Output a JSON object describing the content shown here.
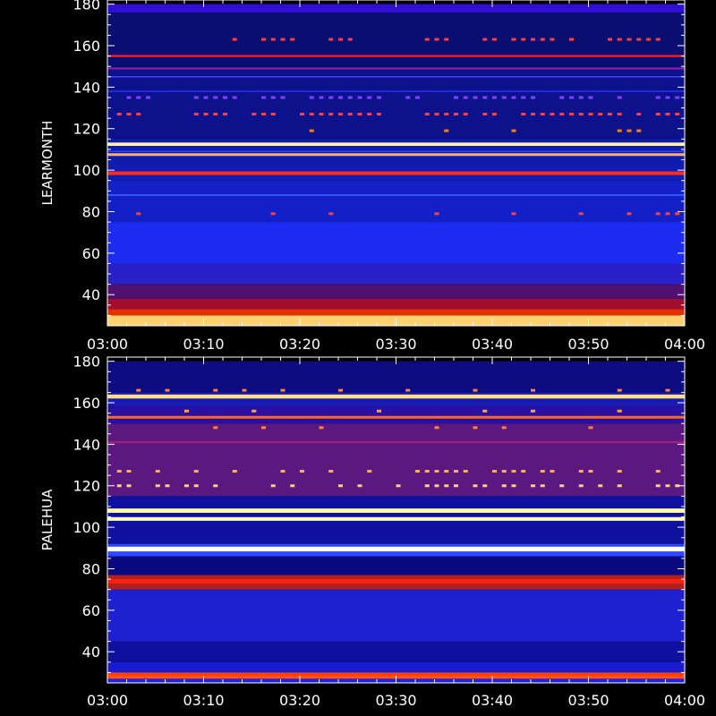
{
  "chart_data": [
    {
      "type": "heatmap",
      "ylabel": "LEARMONTH",
      "x_ticks": [
        "03:00",
        "03:10",
        "03:20",
        "03:30",
        "03:40",
        "03:50",
        "04:00"
      ],
      "x_range": [
        "03:00",
        "04:00"
      ],
      "y_ticks": [
        40,
        60,
        80,
        100,
        120,
        140,
        160,
        180
      ],
      "ylim": [
        25,
        180
      ],
      "background_bands": [
        {
          "from": 25,
          "to": 30,
          "color": "#ffd070"
        },
        {
          "from": 30,
          "to": 33,
          "color": "#e03000"
        },
        {
          "from": 33,
          "to": 38,
          "color": "#a00f30"
        },
        {
          "from": 38,
          "to": 45,
          "color": "#501070"
        },
        {
          "from": 45,
          "to": 55,
          "color": "#2a20c8"
        },
        {
          "from": 55,
          "to": 75,
          "color": "#1d2cf0"
        },
        {
          "from": 75,
          "to": 95,
          "color": "#1320c8"
        },
        {
          "from": 95,
          "to": 115,
          "color": "#101cb0"
        },
        {
          "from": 115,
          "to": 150,
          "color": "#0c128c"
        },
        {
          "from": 150,
          "to": 176,
          "color": "#0a0e70"
        },
        {
          "from": 176,
          "to": 180,
          "color": "#3010d8"
        }
      ],
      "lines": [
        {
          "freq": 107.5,
          "width": 0.8,
          "color": "#ffb070"
        },
        {
          "freq": 109,
          "width": 0.4,
          "color": "#3040ff"
        },
        {
          "freq": 112.5,
          "width": 1.0,
          "color": "#fff4a0"
        },
        {
          "freq": 98.5,
          "width": 1.1,
          "color": "#ff2a1a"
        },
        {
          "freq": 88,
          "width": 0.4,
          "color": "#3a6cff"
        },
        {
          "freq": 155,
          "width": 0.6,
          "color": "#ff2020"
        },
        {
          "freq": 149,
          "width": 0.5,
          "color": "#a020a0"
        },
        {
          "freq": 145,
          "width": 0.4,
          "color": "#4a40ff"
        },
        {
          "freq": 138,
          "width": 0.4,
          "color": "#3030ff"
        }
      ],
      "blips": [
        {
          "freq": 163,
          "times": [
            13,
            16,
            17,
            18,
            19,
            23,
            24,
            25,
            33,
            34,
            35,
            39,
            40,
            42,
            43,
            44,
            45,
            46,
            48,
            52,
            53,
            54,
            55,
            56,
            57
          ],
          "color": "#ff4040"
        },
        {
          "freq": 135,
          "times": [
            2,
            3,
            4,
            9,
            10,
            11,
            12,
            13,
            16,
            17,
            18,
            21,
            22,
            23,
            24,
            25,
            26,
            27,
            28,
            31,
            32,
            36,
            37,
            38,
            39,
            40,
            41,
            42,
            43,
            44,
            47,
            48,
            49,
            50,
            53,
            57,
            58,
            59
          ],
          "color": "#8040ff"
        },
        {
          "freq": 127,
          "times": [
            1,
            2,
            3,
            9,
            10,
            11,
            12,
            15,
            16,
            17,
            20,
            21,
            22,
            23,
            24,
            25,
            26,
            27,
            28,
            33,
            34,
            35,
            36,
            37,
            39,
            40,
            43,
            44,
            45,
            46,
            47,
            48,
            49,
            50,
            51,
            52,
            53,
            55,
            57,
            58,
            59
          ],
          "color": "#ff4040"
        },
        {
          "freq": 79,
          "times": [
            3,
            17,
            23,
            34,
            42,
            49,
            54,
            57,
            58,
            59
          ],
          "color": "#ff4040"
        },
        {
          "freq": 119,
          "times": [
            21,
            35,
            42,
            53,
            54,
            55
          ],
          "color": "#ff8000"
        }
      ]
    },
    {
      "type": "heatmap",
      "ylabel": "PALEHUA",
      "x_ticks": [
        "03:00",
        "03:10",
        "03:20",
        "03:30",
        "03:40",
        "03:50",
        "04:00"
      ],
      "x_range": [
        "03:00",
        "04:00"
      ],
      "y_ticks": [
        40,
        60,
        80,
        100,
        120,
        140,
        160,
        180
      ],
      "ylim": [
        25,
        180
      ],
      "background_bands": [
        {
          "from": 25,
          "to": 27,
          "color": "#2222dd"
        },
        {
          "from": 27,
          "to": 30,
          "color": "#ff5020"
        },
        {
          "from": 30,
          "to": 35,
          "color": "#1a1ad0"
        },
        {
          "from": 35,
          "to": 45,
          "color": "#1010a0"
        },
        {
          "from": 45,
          "to": 70,
          "color": "#1f20d0"
        },
        {
          "from": 70,
          "to": 77,
          "color": "#b02020"
        },
        {
          "from": 77,
          "to": 86,
          "color": "#0a0a80"
        },
        {
          "from": 86,
          "to": 92,
          "color": "#3048ff"
        },
        {
          "from": 92,
          "to": 115,
          "color": "#1010a0"
        },
        {
          "from": 115,
          "to": 150,
          "color": "#5a1880"
        },
        {
          "from": 150,
          "to": 158,
          "color": "#2a10a0"
        },
        {
          "from": 158,
          "to": 165,
          "color": "#1a1ab0"
        },
        {
          "from": 165,
          "to": 180,
          "color": "#0c0c80"
        }
      ],
      "lines": [
        {
          "freq": 163,
          "width": 1.2,
          "color": "#ffe080"
        },
        {
          "freq": 153,
          "width": 0.8,
          "color": "#ff6a20"
        },
        {
          "freq": 108,
          "width": 1.3,
          "color": "#ffffa0"
        },
        {
          "freq": 104,
          "width": 1.1,
          "color": "#ffffc0"
        },
        {
          "freq": 89.5,
          "width": 1.4,
          "color": "#ffffff"
        },
        {
          "freq": 74,
          "width": 1.3,
          "color": "#ff2010"
        },
        {
          "freq": 29,
          "width": 0.8,
          "color": "#ff4000"
        },
        {
          "freq": 141,
          "width": 0.6,
          "color": "#a02080"
        }
      ],
      "blips": [
        {
          "freq": 127,
          "times": [
            1,
            2,
            5,
            9,
            13,
            18,
            20,
            23,
            27,
            32,
            33,
            34,
            35,
            36,
            37,
            40,
            41,
            42,
            43,
            45,
            46,
            49,
            50,
            53,
            57
          ],
          "color": "#ffb050"
        },
        {
          "freq": 120,
          "times": [
            1,
            2,
            5,
            6,
            8,
            9,
            11,
            17,
            19,
            24,
            26,
            30,
            33,
            34,
            35,
            36,
            38,
            39,
            41,
            42,
            44,
            45,
            47,
            49,
            51,
            53,
            57,
            58,
            59
          ],
          "color": "#ffd080"
        },
        {
          "freq": 166,
          "times": [
            3,
            6,
            11,
            14,
            18,
            24,
            31,
            38,
            44,
            53,
            58
          ],
          "color": "#ff8040"
        },
        {
          "freq": 156,
          "times": [
            8,
            15,
            28,
            39,
            44,
            53
          ],
          "color": "#ffa040"
        },
        {
          "freq": 148,
          "times": [
            11,
            16,
            22,
            34,
            38,
            41,
            50
          ],
          "color": "#ff8040"
        }
      ]
    }
  ]
}
